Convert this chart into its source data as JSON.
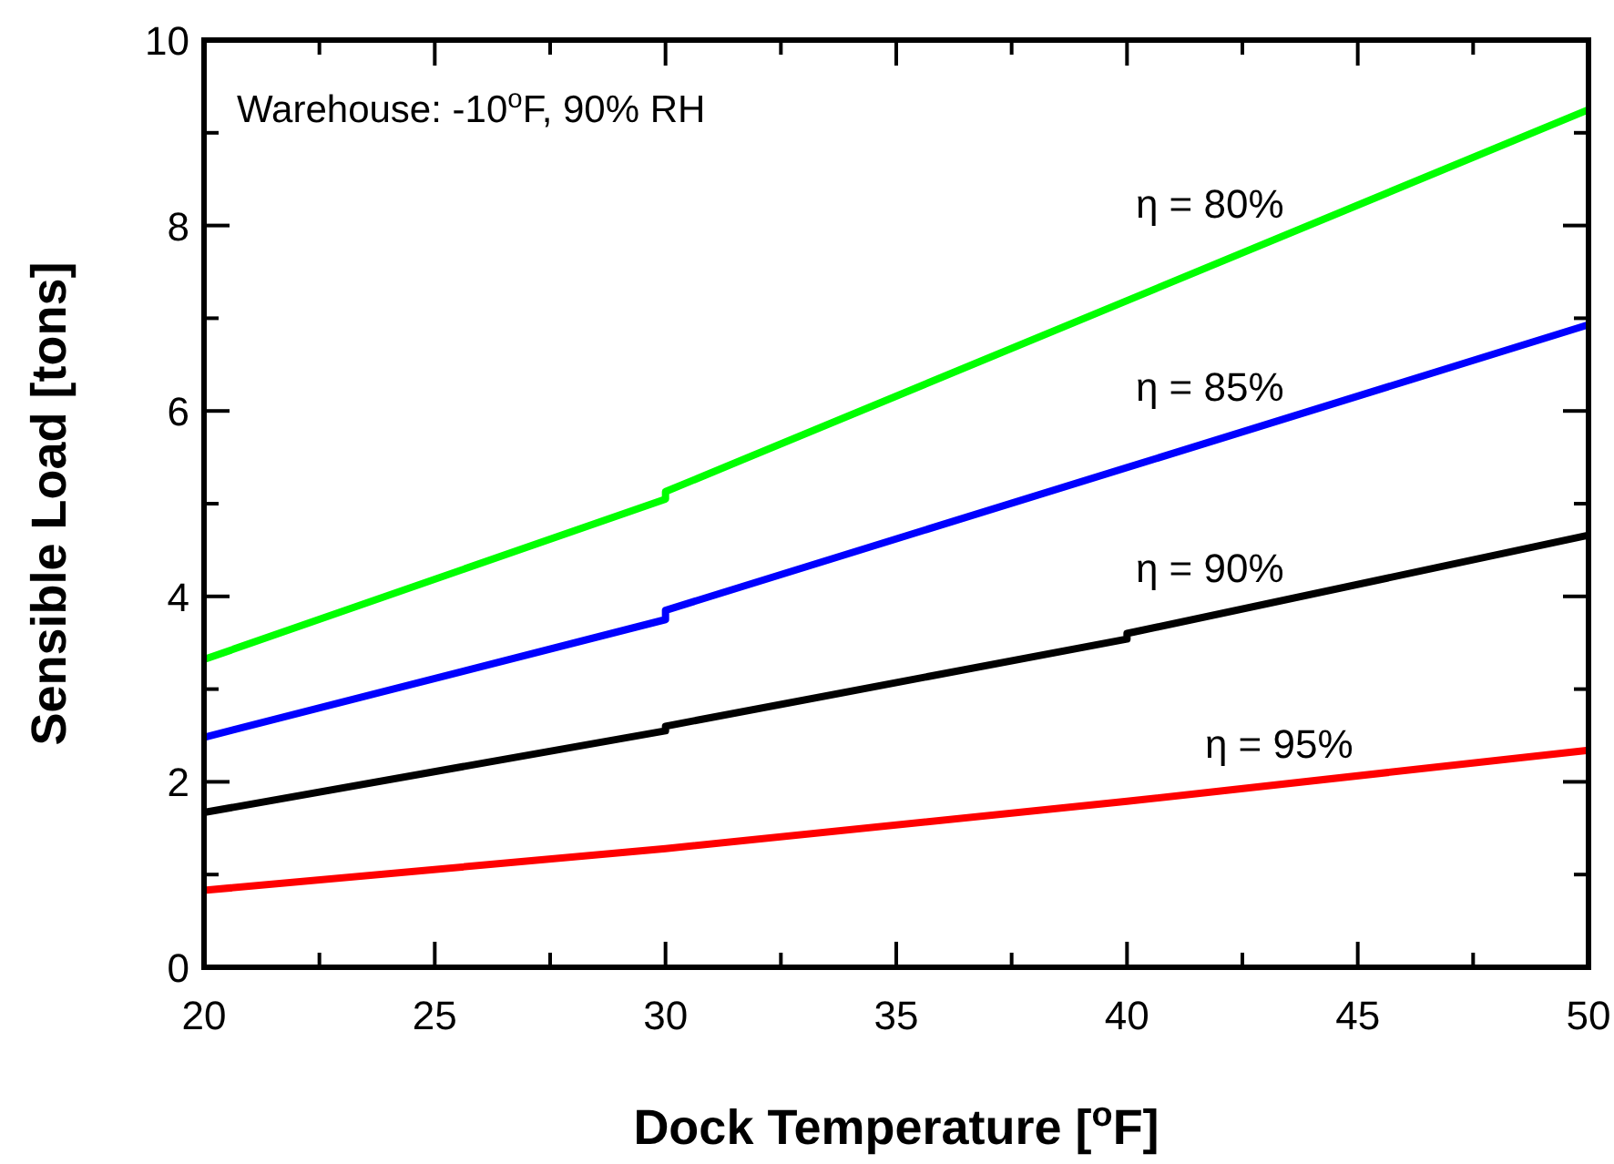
{
  "chart_data": {
    "type": "line",
    "xlabel": "Dock Temperature [$^{o}$F]",
    "ylabel": "Sensible Load  [tons]",
    "annotations": [
      "Warehouse: -10$^{o}$F, 90% RH"
    ],
    "xlim": [
      20,
      50
    ],
    "xticks": [
      20,
      25,
      30,
      35,
      40,
      45,
      50
    ],
    "ylim": [
      0,
      10
    ],
    "yticks": [
      0,
      2,
      4,
      6,
      8,
      10
    ],
    "grid": false,
    "marker": "none",
    "line_style": "solid",
    "series": [
      {
        "name": "η = 80%",
        "color": "#00ff00",
        "x": [
          20,
          30,
          30,
          50
        ],
        "values": [
          3.32,
          5.05,
          5.13,
          9.25
        ]
      },
      {
        "name": "η = 85%",
        "color": "#0000ff",
        "x": [
          20,
          30,
          30,
          50
        ],
        "values": [
          2.48,
          3.75,
          3.85,
          6.93
        ]
      },
      {
        "name": "η = 90%",
        "color": "#000000",
        "x": [
          20,
          30,
          30,
          40,
          40,
          50
        ],
        "values": [
          1.67,
          2.55,
          2.6,
          3.54,
          3.6,
          4.66
        ]
      },
      {
        "name": "η = 95%",
        "color": "#ff0000",
        "x": [
          20,
          30,
          40,
          50
        ],
        "values": [
          0.83,
          1.28,
          1.79,
          2.34
        ]
      }
    ]
  }
}
